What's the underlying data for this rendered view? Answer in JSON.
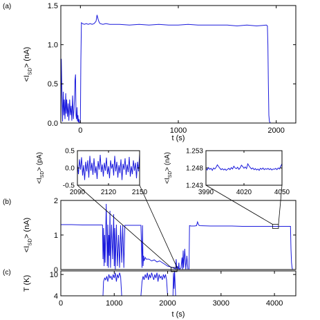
{
  "chart_data": [
    {
      "panel_label": "(a)",
      "type": "line",
      "xlabel": "t (s)",
      "ylabel": "<I_SD> (nA)",
      "xlim": [
        -200,
        2200
      ],
      "ylim": [
        0,
        1.5
      ],
      "xticks": [
        "0",
        "1000",
        "2000"
      ],
      "yticks": [
        "0.0",
        "0.5",
        "1.0",
        "1.5"
      ],
      "series": [
        {
          "color": "#1a1adc",
          "x": [
            -200,
            -195,
            -188,
            -182,
            -175,
            -170,
            -165,
            -158,
            -150,
            -145,
            -140,
            -132,
            -125,
            -118,
            -110,
            -102,
            -95,
            -88,
            -80,
            -72,
            -65,
            -60,
            -55,
            -50,
            -45,
            -40,
            -35,
            -30,
            -25,
            -20,
            -15,
            -10,
            -5,
            0,
            5,
            10,
            20,
            40,
            60,
            80,
            100,
            120,
            140,
            160,
            170,
            180,
            190,
            200,
            230,
            260,
            300,
            400,
            500,
            600,
            700,
            800,
            900,
            1000,
            1100,
            1200,
            1300,
            1400,
            1500,
            1600,
            1700,
            1800,
            1900,
            1910,
            1915,
            1920,
            1925,
            1930,
            1940
          ],
          "y": [
            0.0,
            0.82,
            0.35,
            0.02,
            0.4,
            0.1,
            0.3,
            0.05,
            0.38,
            0.12,
            0.3,
            0.08,
            0.25,
            0.03,
            0.3,
            0.1,
            0.22,
            0.03,
            0.35,
            0.05,
            0.18,
            0.3,
            0.55,
            0.62,
            0.1,
            0.05,
            0.2,
            0.02,
            0.1,
            0.01,
            0.05,
            0.0,
            0.0,
            0.0,
            0.8,
            1.28,
            1.27,
            1.26,
            1.27,
            1.26,
            1.27,
            1.26,
            1.27,
            1.3,
            1.38,
            1.33,
            1.29,
            1.27,
            1.26,
            1.27,
            1.26,
            1.26,
            1.25,
            1.26,
            1.25,
            1.26,
            1.25,
            1.25,
            1.26,
            1.25,
            1.25,
            1.25,
            1.25,
            1.24,
            1.25,
            1.24,
            1.25,
            1.24,
            1.0,
            0.5,
            0.1,
            0.02,
            0.0
          ]
        }
      ]
    },
    {
      "type": "line",
      "xlabel": "",
      "ylabel": "<I_SD> (pA)",
      "xlim": [
        2090,
        2150
      ],
      "ylim": [
        -0.5,
        0.5
      ],
      "xticks": [
        "2090",
        "2120",
        "2150"
      ],
      "yticks": [
        "-0.5",
        "0.0",
        "0.5"
      ],
      "series": [
        {
          "color": "#1a1adc",
          "x": [
            2090,
            2091,
            2092,
            2093,
            2094,
            2095,
            2096,
            2097,
            2098,
            2099,
            2100,
            2101,
            2102,
            2103,
            2104,
            2105,
            2106,
            2107,
            2108,
            2109,
            2110,
            2111,
            2112,
            2113,
            2114,
            2115,
            2116,
            2117,
            2118,
            2119,
            2120,
            2121,
            2122,
            2123,
            2124,
            2125,
            2126,
            2127,
            2128,
            2129,
            2130,
            2131,
            2132,
            2133,
            2134,
            2135,
            2136,
            2137,
            2138,
            2139,
            2140,
            2141,
            2142,
            2143,
            2144,
            2145,
            2146,
            2147,
            2148,
            2149,
            2150
          ],
          "y": [
            0.12,
            -0.18,
            0.25,
            -0.05,
            0.31,
            -0.22,
            0.08,
            -0.35,
            0.18,
            -0.1,
            0.22,
            -0.28,
            0.35,
            -0.08,
            0.15,
            -0.2,
            0.28,
            -0.15,
            0.05,
            -0.32,
            0.2,
            -0.05,
            0.38,
            -0.12,
            0.1,
            -0.25,
            0.15,
            -0.08,
            0.3,
            -0.18,
            0.05,
            -0.3,
            0.22,
            -0.02,
            0.12,
            -0.22,
            0.35,
            -0.1,
            0.18,
            -0.28,
            0.08,
            -0.15,
            0.25,
            -0.35,
            0.12,
            -0.05,
            0.28,
            -0.2,
            0.1,
            -0.12,
            0.32,
            -0.25,
            0.05,
            -0.18,
            0.22,
            -0.08,
            0.15,
            -0.3,
            0.18,
            -0.1,
            0.4
          ]
        }
      ]
    },
    {
      "type": "line",
      "xlabel": "",
      "ylabel": "<I_SD> (nA)",
      "xlim": [
        3990,
        4050
      ],
      "ylim": [
        1.243,
        1.253
      ],
      "xticks": [
        "3990",
        "4020",
        "4050"
      ],
      "yticks": [
        "1.243",
        "1.248",
        "1.253"
      ],
      "series": [
        {
          "color": "#1a1adc",
          "x": [
            3990,
            3991,
            3992,
            3993,
            3994,
            3995,
            3996,
            3997,
            3998,
            3999,
            4000,
            4001,
            4002,
            4003,
            4004,
            4005,
            4006,
            4007,
            4008,
            4009,
            4010,
            4011,
            4012,
            4013,
            4014,
            4015,
            4016,
            4017,
            4018,
            4019,
            4020,
            4021,
            4022,
            4023,
            4024,
            4025,
            4026,
            4027,
            4028,
            4029,
            4030,
            4031,
            4032,
            4033,
            4034,
            4035,
            4036,
            4037,
            4038,
            4039,
            4040,
            4041,
            4042,
            4043,
            4044,
            4045,
            4046,
            4047,
            4048,
            4049,
            4050
          ],
          "y": [
            1.2478,
            1.2474,
            1.2481,
            1.2476,
            1.2479,
            1.2473,
            1.248,
            1.2477,
            1.2482,
            1.2489,
            1.2484,
            1.2479,
            1.2475,
            1.2478,
            1.2474,
            1.2477,
            1.2473,
            1.2476,
            1.2479,
            1.2475,
            1.2481,
            1.2477,
            1.2485,
            1.248,
            1.2478,
            1.2482,
            1.2476,
            1.248,
            1.2488,
            1.2484,
            1.2479,
            1.2483,
            1.2478,
            1.2492,
            1.2486,
            1.2481,
            1.2477,
            1.248,
            1.2475,
            1.2478,
            1.2474,
            1.2477,
            1.2473,
            1.2479,
            1.2476,
            1.248,
            1.2475,
            1.2478,
            1.2476,
            1.2479,
            1.2475,
            1.2478,
            1.2474,
            1.2477,
            1.2476,
            1.2479,
            1.2475,
            1.248,
            1.2477,
            1.2485,
            1.2492
          ]
        }
      ]
    },
    {
      "panel_label": "(b)",
      "type": "line",
      "xlabel": "",
      "ylabel": "<I_SD> (nA)",
      "xlim": [
        0,
        4400
      ],
      "ylim": [
        0,
        2
      ],
      "yticks": [
        "0",
        "1",
        "2"
      ],
      "series": [
        {
          "color": "#1a1adc",
          "x": [
            0,
            200,
            400,
            600,
            700,
            780,
            790,
            800,
            810,
            820,
            830,
            850,
            870,
            880,
            890,
            900,
            910,
            920,
            930,
            950,
            970,
            990,
            1000,
            1010,
            1020,
            1040,
            1060,
            1080,
            1100,
            1120,
            1140,
            1160,
            1180,
            1200,
            1250,
            1300,
            1350,
            1400,
            1450,
            1500,
            1520,
            1530,
            1540,
            1550,
            1560,
            1580,
            1600,
            1650,
            1700,
            1750,
            1800,
            1850,
            1900,
            1950,
            2000,
            2050,
            2100,
            2150,
            2160,
            2170,
            2180,
            2200,
            2210,
            2220,
            2250,
            2270,
            2280,
            2290,
            2300,
            2320,
            2340,
            2360,
            2380,
            2400,
            2410,
            2420,
            2430,
            2450,
            2500,
            2540,
            2560,
            2580,
            2600,
            2800,
            3000,
            3200,
            3400,
            3600,
            3800,
            4000,
            4200,
            4300,
            4310,
            4320,
            4330,
            4340
          ],
          "y": [
            1.3,
            1.3,
            1.29,
            1.29,
            1.29,
            1.29,
            0.3,
            1.2,
            0.1,
            1.0,
            0.2,
            1.9,
            0.1,
            1.3,
            0.05,
            1.0,
            0.4,
            1.7,
            0.05,
            1.3,
            0.3,
            1.6,
            0.1,
            1.2,
            0.0,
            1.3,
            0.1,
            1.0,
            0.05,
            1.28,
            0.2,
            1.28,
            0.05,
            1.28,
            1.28,
            1.28,
            1.28,
            1.28,
            1.28,
            1.28,
            0.05,
            1.28,
            0.1,
            0.4,
            0.25,
            0.35,
            0.3,
            0.3,
            0.25,
            0.28,
            0.22,
            0.25,
            0.2,
            0.15,
            0.1,
            0.08,
            0.05,
            0.02,
            0.3,
            0.02,
            0.1,
            0.0,
            0.2,
            0.0,
            0.05,
            0.35,
            0.0,
            0.55,
            0.05,
            0.6,
            0.0,
            0.4,
            0.0,
            0.0,
            1.27,
            1.27,
            1.26,
            1.26,
            1.26,
            1.27,
            1.38,
            1.29,
            1.27,
            1.26,
            1.26,
            1.26,
            1.25,
            1.25,
            1.25,
            1.25,
            1.25,
            1.25,
            0.6,
            0.2,
            0.05,
            0.0
          ]
        }
      ]
    },
    {
      "panel_label": "(c)",
      "type": "line",
      "xlabel": "t (s)",
      "ylabel": "T (K)",
      "xlim": [
        0,
        4400
      ],
      "ylim": [
        4,
        11
      ],
      "xticks": [
        "0",
        "1000",
        "2000",
        "3000",
        "4000"
      ],
      "yticks": [
        "4",
        "10"
      ],
      "series": [
        {
          "color": "#1a1adc",
          "x": [
            0,
            300,
            600,
            790,
            800,
            820,
            840,
            860,
            880,
            900,
            920,
            940,
            960,
            980,
            1000,
            1020,
            1040,
            1060,
            1080,
            1100,
            1120,
            1140,
            1160,
            1500,
            1520,
            1540,
            1560,
            1580,
            1600,
            1620,
            1640,
            1660,
            1680,
            1700,
            1720,
            1740,
            1760,
            1780,
            1800,
            1820,
            1840,
            1860,
            1880,
            1900,
            1920,
            1940,
            1960,
            1980,
            2000,
            2100,
            2110,
            2120,
            2130,
            2150,
            2160,
            2200,
            2500,
            3000,
            3500,
            4000,
            4400
          ],
          "y": [
            4,
            4,
            4,
            4,
            8,
            9,
            8.5,
            9.5,
            8,
            10,
            9,
            9.5,
            8.5,
            10,
            9,
            10.5,
            8,
            10,
            9,
            10.5,
            9.5,
            4,
            4,
            4,
            8,
            9.5,
            8.5,
            10,
            9,
            10.5,
            8.5,
            10,
            9,
            10.5,
            9.5,
            8.5,
            10,
            9,
            10.5,
            8,
            10,
            9,
            9.5,
            8.5,
            10,
            9,
            10,
            8.5,
            4,
            4,
            10.5,
            6,
            11,
            4,
            4,
            4,
            4,
            4,
            4,
            4,
            4
          ]
        }
      ]
    }
  ]
}
